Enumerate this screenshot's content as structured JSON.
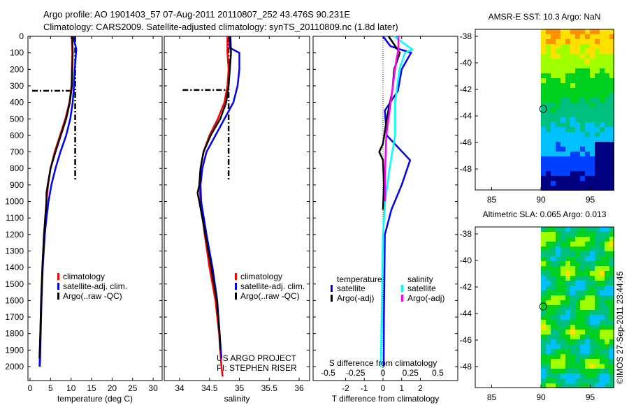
{
  "title_line1": "Argo profile: AO 1901403_57 07-Aug-2011 20110807_252 43.476S 90.231E",
  "title_line2": "Climatology: CARS2009. Satellite-adjusted climatology: synTS_20110809.nc (1.8d later)",
  "credit": "©IMOS 27-Sep-2011 23:44:45",
  "project_line1": "US ARGO PROJECT",
  "project_line2": "PI: STEPHEN RISER",
  "colors": {
    "climatology": "#ff0000",
    "satellite": "#0000ff",
    "argo": "#000000",
    "sal_satellite": "#00ffff",
    "sal_argo": "#ff00ff"
  },
  "chart_data": [
    {
      "type": "line",
      "xlabel": "temperature (deg C)",
      "ylabel": "",
      "xlim": [
        -1,
        31
      ],
      "ylim": [
        2060,
        0
      ],
      "xticks": [
        "0",
        "5",
        "10",
        "15",
        "20",
        "25",
        "30"
      ],
      "yticks": [
        "0",
        "100",
        "200",
        "300",
        "400",
        "500",
        "600",
        "700",
        "800",
        "900",
        "1000",
        "1100",
        "1200",
        "1300",
        "1400",
        "1500",
        "1600",
        "1700",
        "1800",
        "1900",
        "2000"
      ],
      "legend": [
        "climatology",
        "satellite-adj. clim.",
        "Argo(..raw -QC)"
      ],
      "series": [
        {
          "name": "climatology",
          "depth": [
            0,
            100,
            200,
            300,
            400,
            500,
            600,
            700,
            800,
            900,
            1000,
            1200,
            1400,
            1600,
            1800,
            2000
          ],
          "values": [
            10.2,
            10.3,
            10.2,
            10.1,
            9.6,
            8.6,
            7.3,
            6.0,
            5.0,
            4.4,
            4.0,
            3.4,
            3.0,
            2.7,
            2.5,
            2.3
          ]
        },
        {
          "name": "satellite-adj. clim.",
          "depth": [
            0,
            80,
            100,
            200,
            300,
            400,
            500,
            600,
            700,
            800,
            900,
            1000,
            1100,
            1200,
            1400,
            1600,
            1800,
            2000
          ],
          "values": [
            10.5,
            11.3,
            11.2,
            10.9,
            10.7,
            10.4,
            9.8,
            8.8,
            7.4,
            6.2,
            5.2,
            4.5,
            4.0,
            3.6,
            3.1,
            2.8,
            2.6,
            2.4
          ]
        },
        {
          "name": "Argo(..raw -QC)",
          "depth": [
            0,
            100,
            200,
            300,
            400,
            500,
            600,
            700,
            800,
            900,
            950,
            1000,
            1100,
            1200,
            1400,
            1600,
            1800,
            1950
          ],
          "values": [
            10.3,
            10.4,
            10.3,
            10.2,
            9.7,
            8.8,
            7.5,
            6.2,
            5.0,
            4.3,
            4.0,
            4.0,
            3.7,
            3.4,
            3.0,
            2.7,
            2.5,
            2.3
          ]
        }
      ],
      "reference_lines": [
        {
          "x": [
            11,
            11
          ],
          "depth": [
            0,
            870
          ]
        },
        {
          "x": [
            0.5,
            11
          ],
          "depth": [
            330,
            330
          ]
        }
      ]
    },
    {
      "type": "line",
      "xlabel": "salinity",
      "xlim": [
        33.75,
        36.15
      ],
      "ylim": [
        2060,
        0
      ],
      "xticks": [
        "34",
        "34.5",
        "35",
        "35.5",
        "36"
      ],
      "legend": [
        "climatology",
        "satellite-adj. clim.",
        "Argo(..raw -QC)"
      ],
      "series": [
        {
          "name": "climatology",
          "depth": [
            0,
            100,
            200,
            300,
            400,
            500,
            600,
            700,
            800,
            900,
            1000,
            1200,
            1400,
            1600,
            1800,
            2000,
            2060
          ],
          "values": [
            34.8,
            34.8,
            34.82,
            34.8,
            34.75,
            34.64,
            34.5,
            34.4,
            34.35,
            34.33,
            34.35,
            34.42,
            34.5,
            34.6,
            34.66,
            34.7,
            34.72
          ]
        },
        {
          "name": "satellite-adj. clim.",
          "depth": [
            0,
            70,
            100,
            200,
            300,
            400,
            500,
            600,
            700,
            800,
            900,
            1000,
            1200,
            1400,
            1600,
            1800,
            1950
          ],
          "values": [
            34.83,
            34.84,
            35.0,
            35.0,
            34.97,
            34.9,
            34.75,
            34.6,
            34.45,
            34.38,
            34.35,
            34.36,
            34.45,
            34.55,
            34.63,
            34.67,
            34.7
          ]
        },
        {
          "name": "Argo(..raw -QC)",
          "depth": [
            0,
            100,
            200,
            300,
            400,
            500,
            600,
            700,
            800,
            900,
            950,
            1000,
            1200,
            1400,
            1600,
            1800,
            1900
          ],
          "values": [
            34.85,
            34.86,
            34.84,
            34.82,
            34.78,
            34.68,
            34.52,
            34.4,
            34.35,
            34.33,
            34.3,
            34.33,
            34.43,
            34.53,
            34.62,
            34.67,
            34.68
          ]
        }
      ],
      "reference_lines": [
        {
          "x": [
            34.82,
            34.82
          ],
          "depth": [
            0,
            870
          ]
        },
        {
          "x": [
            34.05,
            34.82
          ],
          "depth": [
            325,
            325
          ]
        }
      ]
    },
    {
      "type": "line",
      "xlabel": "T difference from climatology",
      "x2label": "S difference from climatology",
      "xlim": [
        -2.9,
        2.9
      ],
      "ylim": [
        2060,
        0
      ],
      "xticks": [
        "-2",
        "-1",
        "0",
        "1",
        "2"
      ],
      "x2ticks": [
        "-0.5",
        "-0.25",
        "0",
        "0.25",
        "0.5"
      ],
      "legend_temperature_title": "temperature",
      "legend_salinity_title": "salinity",
      "legend": [
        "satellite",
        "Argo(-adj)",
        "satellite",
        "Argo(-adj)"
      ],
      "series": [
        {
          "name": "T satellite",
          "depth": [
            0,
            60,
            100,
            200,
            330,
            450,
            600,
            750,
            900,
            1050,
            1200,
            1400,
            1700,
            2000
          ],
          "values": [
            0,
            0.4,
            1.5,
            1.0,
            0.8,
            0.1,
            0.2,
            1.45,
            1.0,
            0.45,
            0.1,
            0.08,
            0.05,
            0.04
          ]
        },
        {
          "name": "T Argo(-adj)",
          "depth": [
            0,
            100,
            200,
            330,
            500,
            650,
            700,
            750,
            900,
            1050
          ],
          "values": [
            0.3,
            0.9,
            0.6,
            0.5,
            0.2,
            0,
            -0.2,
            0,
            0.05,
            0
          ]
        },
        {
          "name": "S satellite",
          "depth": [
            0,
            80,
            100,
            200,
            400,
            600,
            800,
            1000,
            1200,
            1600,
            2000
          ],
          "values": [
            0.1,
            0.27,
            0.2,
            0.15,
            0.11,
            0.11,
            0.06,
            0.02,
            0,
            -0.01,
            -0.02
          ]
        },
        {
          "name": "S Argo(-adj)",
          "depth": [
            0,
            80,
            150,
            300,
            600,
            800,
            1000
          ],
          "values": [
            0.14,
            0.14,
            0.12,
            0.09,
            0.03,
            0.02,
            0.02
          ]
        }
      ]
    }
  ],
  "maps": [
    {
      "title": "AMSR-E SST: 10.3 Argo: NaN",
      "yticks": [
        "-38",
        "-40",
        "-42",
        "-44",
        "-46",
        "-48"
      ],
      "xticks": [
        "85",
        "90",
        "95"
      ],
      "marker": {
        "lon": 90.231,
        "lat": -43.476
      }
    },
    {
      "title": "Altimetric SLA: 0.065 Argo: 0.013",
      "yticks": [
        "-38",
        "-40",
        "-42",
        "-44",
        "-46",
        "-48"
      ],
      "xticks": [
        "85",
        "90",
        "95"
      ],
      "marker": {
        "lon": 90.231,
        "lat": -43.476
      }
    }
  ]
}
